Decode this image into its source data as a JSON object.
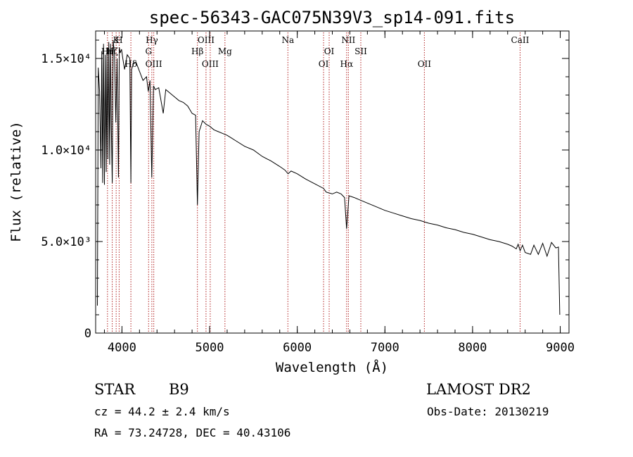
{
  "chart_data": {
    "type": "line",
    "title": "spec-56343-GAC075N39V3_sp14-091.fits",
    "xlabel": "Wavelength (Å)",
    "ylabel": "Flux (relative)",
    "xlim": [
      3700,
      9100
    ],
    "ylim": [
      0,
      16500
    ],
    "grid": false,
    "x_ticks": [
      {
        "value": 4000,
        "label": "4000"
      },
      {
        "value": 5000,
        "label": "5000"
      },
      {
        "value": 6000,
        "label": "6000"
      },
      {
        "value": 7000,
        "label": "7000"
      },
      {
        "value": 8000,
        "label": "8000"
      },
      {
        "value": 9000,
        "label": "9000"
      }
    ],
    "y_ticks": [
      {
        "value": 0,
        "label": "0"
      },
      {
        "value": 5000,
        "label": "5.0×10³"
      },
      {
        "value": 10000,
        "label": "1.0×10⁴"
      },
      {
        "value": 15000,
        "label": "1.5×10⁴"
      }
    ],
    "series": [
      {
        "x": [
          3720,
          3730,
          3745,
          3760,
          3770,
          3780,
          3790,
          3800,
          3810,
          3820,
          3830,
          3840,
          3850,
          3860,
          3870,
          3880,
          3889,
          3900,
          3915,
          3930,
          3945,
          3960,
          3970,
          3980,
          3995,
          4010,
          4030,
          4060,
          4090,
          4102,
          4110,
          4130,
          4160,
          4200,
          4240,
          4280,
          4300,
          4320,
          4340,
          4360,
          4380,
          4420,
          4471,
          4500,
          4550,
          4600,
          4650,
          4700,
          4750,
          4800,
          4840,
          4861,
          4880,
          4920,
          4960,
          5000,
          5050,
          5100,
          5150,
          5200,
          5250,
          5300,
          5400,
          5500,
          5600,
          5700,
          5800,
          5860,
          5895,
          5930,
          6000,
          6100,
          6200,
          6300,
          6330,
          6400,
          6450,
          6500,
          6540,
          6563,
          6590,
          6650,
          6700,
          6800,
          6900,
          7000,
          7100,
          7200,
          7300,
          7400,
          7500,
          7600,
          7700,
          7800,
          7900,
          8000,
          8100,
          8200,
          8300,
          8400,
          8450,
          8498,
          8520,
          8542,
          8570,
          8600,
          8662,
          8700,
          8750,
          8800,
          8850,
          8900,
          8950,
          8980,
          8995
        ],
        "y": [
          1500,
          14500,
          13200,
          9000,
          15400,
          8200,
          15800,
          8100,
          15200,
          8800,
          15600,
          9500,
          15900,
          9200,
          15800,
          11000,
          8200,
          16000,
          15200,
          11500,
          15000,
          8500,
          15600,
          15300,
          15500,
          15000,
          14400,
          15200,
          15000,
          8200,
          14400,
          14700,
          14800,
          14300,
          13800,
          14000,
          13200,
          13800,
          8500,
          13500,
          13300,
          13400,
          12000,
          13300,
          13100,
          12900,
          12700,
          12600,
          12400,
          12000,
          11900,
          7000,
          11000,
          11600,
          11400,
          11300,
          11100,
          11000,
          10900,
          10800,
          10650,
          10500,
          10200,
          10000,
          9650,
          9400,
          9100,
          8900,
          8700,
          8850,
          8700,
          8400,
          8150,
          7900,
          7700,
          7600,
          7700,
          7600,
          7400,
          5700,
          7500,
          7400,
          7300,
          7100,
          6900,
          6700,
          6550,
          6400,
          6250,
          6150,
          6000,
          5900,
          5750,
          5650,
          5500,
          5400,
          5250,
          5100,
          5000,
          4850,
          4750,
          4600,
          4850,
          4500,
          4800,
          4400,
          4300,
          4800,
          4300,
          4900,
          4200,
          4950,
          4650,
          4700,
          1000
        ]
      }
    ],
    "line_markers": [
      {
        "x": 3835,
        "label": "Hη",
        "row": 1
      },
      {
        "x": 3889,
        "label": "Hζ",
        "row": 1
      },
      {
        "x": 3934,
        "label": "K",
        "row": 0
      },
      {
        "x": 3968,
        "label": "H",
        "row": 0
      },
      {
        "x": 4102,
        "label": "Hδ",
        "row": 2
      },
      {
        "x": 4304,
        "label": "G",
        "row": 1
      },
      {
        "x": 4341,
        "label": "Hγ",
        "row": 0
      },
      {
        "x": 4363,
        "label": "OIII",
        "row": 2
      },
      {
        "x": 4861,
        "label": "Hβ",
        "row": 1
      },
      {
        "x": 4959,
        "label": "OIII",
        "row": 0
      },
      {
        "x": 5007,
        "label": "OIII",
        "row": 2
      },
      {
        "x": 5175,
        "label": "Mg",
        "row": 1
      },
      {
        "x": 5893,
        "label": "Na",
        "row": 0
      },
      {
        "x": 6300,
        "label": "OI",
        "row": 2
      },
      {
        "x": 6364,
        "label": "OI",
        "row": 1
      },
      {
        "x": 6563,
        "label": "Hα",
        "row": 2
      },
      {
        "x": 6583,
        "label": "NII",
        "row": 0
      },
      {
        "x": 6725,
        "label": "SII",
        "row": 1
      },
      {
        "x": 7450,
        "label": "OII",
        "row": 2
      },
      {
        "x": 8542,
        "label": "CaII",
        "row": 0
      }
    ]
  },
  "info": {
    "class": "STAR",
    "subclass": "B9",
    "survey": "LAMOST DR2",
    "cz": "cz = 44.2 ± 2.4 km/s",
    "obs_date": "Obs-Date: 20130219",
    "radec": "RA =  73.24728, DEC =  40.43106"
  },
  "colors": {
    "spectrum": "#000000",
    "marker_line": "#b22222",
    "axis": "#000000"
  }
}
